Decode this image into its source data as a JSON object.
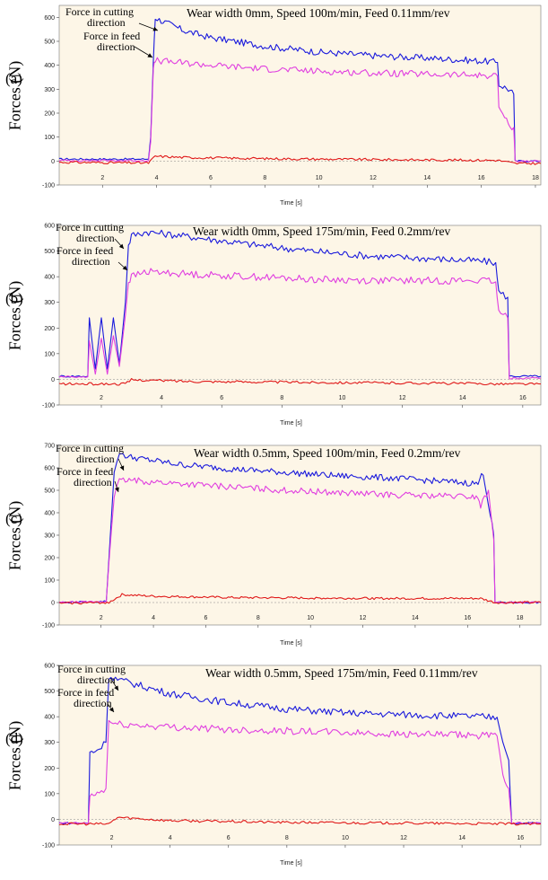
{
  "chart_data": [
    {
      "type": "line",
      "panel_label": "(a)",
      "title": "Wear width 0mm, Speed 100m/min, Feed 0.11mm/rev",
      "ylabel": "Forces (N)",
      "xlabel": "Time [s]",
      "xlim": [
        0.4,
        18.2
      ],
      "ylim": [
        -100,
        650
      ],
      "x_ticks": [
        2,
        4,
        6,
        8,
        10,
        12,
        14,
        16,
        18
      ],
      "y_ticks": [
        -100,
        0,
        100,
        200,
        300,
        400,
        500,
        600
      ],
      "annotations": [
        "Force in cutting",
        "direction",
        "Force in feed",
        "direction"
      ],
      "series": [
        {
          "color": "#1a1adc",
          "points": [
            [
              0.4,
              8
            ],
            [
              3.7,
              8
            ],
            [
              3.78,
              100
            ],
            [
              3.88,
              420
            ],
            [
              3.95,
              600
            ],
            [
              4.1,
              590
            ],
            [
              5,
              545
            ],
            [
              6,
              515
            ],
            [
              8,
              480
            ],
            [
              10,
              455
            ],
            [
              12,
              440
            ],
            [
              14,
              430
            ],
            [
              16,
              418
            ],
            [
              16.6,
              412
            ],
            [
              16.65,
              320
            ],
            [
              17,
              300
            ],
            [
              17.2,
              280
            ],
            [
              17.25,
              0
            ],
            [
              18.2,
              0
            ]
          ]
        },
        {
          "color": "#e03ee0",
          "points": [
            [
              0.4,
              2
            ],
            [
              3.7,
              2
            ],
            [
              3.78,
              80
            ],
            [
              3.88,
              380
            ],
            [
              3.95,
              420
            ],
            [
              4.1,
              418
            ],
            [
              6,
              400
            ],
            [
              8,
              385
            ],
            [
              10,
              375
            ],
            [
              12,
              368
            ],
            [
              14,
              362
            ],
            [
              16,
              358
            ],
            [
              16.6,
              355
            ],
            [
              16.65,
              230
            ],
            [
              17,
              150
            ],
            [
              17.2,
              140
            ],
            [
              17.25,
              0
            ],
            [
              18.2,
              0
            ]
          ]
        },
        {
          "color": "#e01818",
          "points": [
            [
              0.4,
              -5
            ],
            [
              3.7,
              -8
            ],
            [
              3.95,
              20
            ],
            [
              5,
              15
            ],
            [
              8,
              10
            ],
            [
              12,
              6
            ],
            [
              16.6,
              3
            ],
            [
              17.25,
              -10
            ],
            [
              18.2,
              -10
            ]
          ]
        }
      ]
    },
    {
      "type": "line",
      "panel_label": "(b)",
      "title": "Wear width 0mm, Speed 175m/min, Feed 0.2mm/rev",
      "ylabel": "Forces (N)",
      "xlabel": "Time [s]",
      "xlim": [
        0.6,
        16.6
      ],
      "ylim": [
        -100,
        600
      ],
      "x_ticks": [
        2,
        4,
        6,
        8,
        10,
        12,
        14,
        16
      ],
      "y_ticks": [
        -100,
        0,
        100,
        200,
        300,
        400,
        500,
        600
      ],
      "annotations": [
        "Force in cutting",
        "direction",
        "Force in feed",
        "direction"
      ],
      "series": [
        {
          "color": "#1a1adc",
          "points": [
            [
              0.6,
              12
            ],
            [
              1.55,
              12
            ],
            [
              1.6,
              240
            ],
            [
              1.8,
              40
            ],
            [
              2.0,
              240
            ],
            [
              2.2,
              40
            ],
            [
              2.4,
              240
            ],
            [
              2.6,
              60
            ],
            [
              2.8,
              300
            ],
            [
              2.9,
              520
            ],
            [
              3.0,
              560
            ],
            [
              3.5,
              575
            ],
            [
              5,
              555
            ],
            [
              7,
              525
            ],
            [
              9,
              500
            ],
            [
              11,
              480
            ],
            [
              13,
              470
            ],
            [
              14.5,
              462
            ],
            [
              15.1,
              455
            ],
            [
              15.2,
              340
            ],
            [
              15.5,
              320
            ],
            [
              15.55,
              12
            ],
            [
              16.6,
              12
            ]
          ]
        },
        {
          "color": "#e03ee0",
          "points": [
            [
              0.6,
              10
            ],
            [
              1.55,
              10
            ],
            [
              1.6,
              150
            ],
            [
              1.8,
              20
            ],
            [
              2.0,
              160
            ],
            [
              2.2,
              20
            ],
            [
              2.4,
              170
            ],
            [
              2.6,
              50
            ],
            [
              2.8,
              250
            ],
            [
              2.9,
              380
            ],
            [
              3.0,
              400
            ],
            [
              3.5,
              420
            ],
            [
              5,
              410
            ],
            [
              7,
              400
            ],
            [
              9,
              390
            ],
            [
              11,
              385
            ],
            [
              13,
              385
            ],
            [
              14.5,
              385
            ],
            [
              15.1,
              380
            ],
            [
              15.2,
              260
            ],
            [
              15.5,
              240
            ],
            [
              15.55,
              5
            ],
            [
              16.6,
              5
            ]
          ]
        },
        {
          "color": "#e01818",
          "points": [
            [
              0.6,
              -18
            ],
            [
              2.8,
              -18
            ],
            [
              3.0,
              -2
            ],
            [
              5,
              -8
            ],
            [
              9,
              -12
            ],
            [
              13,
              -15
            ],
            [
              15.5,
              -18
            ],
            [
              16.6,
              -18
            ]
          ]
        }
      ]
    },
    {
      "type": "line",
      "panel_label": "(c)",
      "title": "Wear width 0.5mm, Speed 100m/min, Feed 0.2mm/rev",
      "ylabel": "Forces (N)",
      "xlabel": "Time [s]",
      "xlim": [
        0.4,
        18.8
      ],
      "ylim": [
        -100,
        700
      ],
      "x_ticks": [
        2,
        4,
        6,
        8,
        10,
        12,
        14,
        16,
        18
      ],
      "y_ticks": [
        -100,
        0,
        100,
        200,
        300,
        400,
        500,
        600,
        700
      ],
      "annotations": [
        "Force in cutting",
        "direction",
        "Force in feed",
        "direction"
      ],
      "series": [
        {
          "color": "#1a1adc",
          "points": [
            [
              0.4,
              0
            ],
            [
              2.2,
              5
            ],
            [
              2.3,
              200
            ],
            [
              2.5,
              580
            ],
            [
              2.7,
              670
            ],
            [
              3,
              650
            ],
            [
              5,
              615
            ],
            [
              7,
              595
            ],
            [
              9,
              580
            ],
            [
              11,
              565
            ],
            [
              13,
              555
            ],
            [
              15,
              540
            ],
            [
              16.4,
              530
            ],
            [
              16.6,
              580
            ],
            [
              17,
              300
            ],
            [
              17.05,
              0
            ],
            [
              18.8,
              0
            ]
          ]
        },
        {
          "color": "#e03ee0",
          "points": [
            [
              0.4,
              0
            ],
            [
              2.2,
              5
            ],
            [
              2.3,
              180
            ],
            [
              2.5,
              480
            ],
            [
              2.7,
              540
            ],
            [
              3,
              545
            ],
            [
              5,
              530
            ],
            [
              7,
              515
            ],
            [
              9,
              500
            ],
            [
              11,
              490
            ],
            [
              13,
              480
            ],
            [
              15,
              475
            ],
            [
              16.4,
              470
            ],
            [
              16.5,
              430
            ],
            [
              16.8,
              500
            ],
            [
              17,
              280
            ],
            [
              17.05,
              0
            ],
            [
              18.8,
              0
            ]
          ]
        },
        {
          "color": "#e01818",
          "points": [
            [
              0.4,
              -3
            ],
            [
              2.3,
              0
            ],
            [
              2.8,
              35
            ],
            [
              4,
              28
            ],
            [
              7,
              22
            ],
            [
              10,
              20
            ],
            [
              13,
              18
            ],
            [
              16.5,
              18
            ],
            [
              17.05,
              0
            ],
            [
              18.8,
              0
            ]
          ]
        }
      ]
    },
    {
      "type": "line",
      "panel_label": "(d)",
      "title": "Wear width 0.5mm, Speed 175m/min, Feed 0.11mm/rev",
      "ylabel": "Forces (N)",
      "xlabel": "Time [s]",
      "xlim": [
        0.2,
        16.7
      ],
      "ylim": [
        -100,
        600
      ],
      "x_ticks": [
        2,
        4,
        6,
        8,
        10,
        12,
        14,
        16
      ],
      "y_ticks": [
        -100,
        0,
        100,
        200,
        300,
        400,
        500,
        600
      ],
      "annotations": [
        "Force in cutting",
        "direction",
        "Force in feed",
        "direction"
      ],
      "series": [
        {
          "color": "#1a1adc",
          "points": [
            [
              0.2,
              -15
            ],
            [
              1.2,
              -15
            ],
            [
              1.25,
              260
            ],
            [
              1.5,
              270
            ],
            [
              1.8,
              300
            ],
            [
              1.9,
              560
            ],
            [
              2.2,
              545
            ],
            [
              4,
              490
            ],
            [
              6,
              455
            ],
            [
              8,
              430
            ],
            [
              10,
              415
            ],
            [
              12,
              408
            ],
            [
              14,
              402
            ],
            [
              15.2,
              398
            ],
            [
              15.4,
              300
            ],
            [
              15.6,
              230
            ],
            [
              15.7,
              -15
            ],
            [
              16.7,
              -15
            ]
          ]
        },
        {
          "color": "#e03ee0",
          "points": [
            [
              0.2,
              -15
            ],
            [
              1.2,
              -15
            ],
            [
              1.25,
              90
            ],
            [
              1.5,
              100
            ],
            [
              1.8,
              120
            ],
            [
              1.9,
              380
            ],
            [
              2.2,
              370
            ],
            [
              4,
              360
            ],
            [
              6,
              350
            ],
            [
              8,
              345
            ],
            [
              10,
              338
            ],
            [
              12,
              332
            ],
            [
              14,
              328
            ],
            [
              15.2,
              325
            ],
            [
              15.4,
              180
            ],
            [
              15.6,
              120
            ],
            [
              15.7,
              -15
            ],
            [
              16.7,
              -15
            ]
          ]
        },
        {
          "color": "#e01818",
          "points": [
            [
              0.2,
              -18
            ],
            [
              1.9,
              -18
            ],
            [
              2.2,
              8
            ],
            [
              4,
              -5
            ],
            [
              8,
              -12
            ],
            [
              12,
              -15
            ],
            [
              15.7,
              -18
            ],
            [
              16.7,
              -18
            ]
          ]
        }
      ]
    }
  ]
}
